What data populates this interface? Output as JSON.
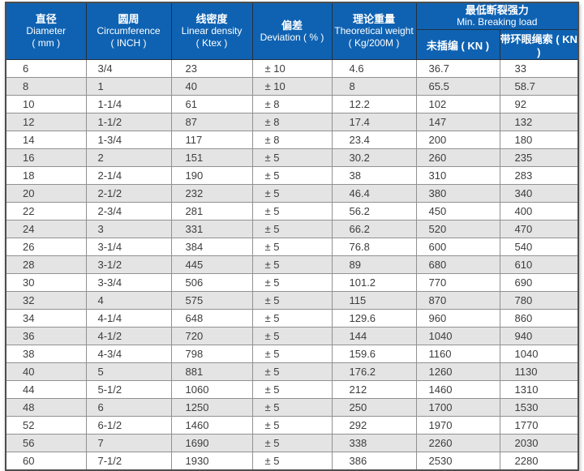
{
  "colors": {
    "header_bg": "#0f62b2",
    "header_text": "#ffffff",
    "row_alt_bg": "#e4e4e4",
    "row_bg": "#ffffff",
    "body_text": "#3d3d3d",
    "grid_border": "#919191",
    "outer_border": "#4e4e4e",
    "header_border": "#20303f"
  },
  "table": {
    "header": {
      "diameter": {
        "zh": "直径",
        "en": "Diameter",
        "unit": "( mm )"
      },
      "circumference": {
        "zh": "圆周",
        "en": "Circumference",
        "unit": "( INCH )"
      },
      "linear_density": {
        "zh": "线密度",
        "en": "Linear density",
        "unit": "( Ktex )"
      },
      "deviation": {
        "zh": "偏差",
        "en": "Deviation ( % )"
      },
      "theoretical_weight": {
        "zh": "理论重量",
        "en": "Theoretical weight",
        "unit": "( Kg/200M )"
      },
      "breaking_load": {
        "zh": "最低断裂强力",
        "en": "Min. Breaking load",
        "unspliced": "未插编 ( KN )",
        "eye_spliced": "带环眼绳索 ( KN )"
      }
    },
    "rows": [
      [
        "6",
        "3/4",
        "23",
        "± 10",
        "4.6",
        "36.7",
        "33"
      ],
      [
        "8",
        "1",
        "40",
        "± 10",
        "8",
        "65.5",
        "58.7"
      ],
      [
        "10",
        "1-1/4",
        "61",
        "± 8",
        "12.2",
        "102",
        "92"
      ],
      [
        "12",
        "1-1/2",
        "87",
        "± 8",
        "17.4",
        "147",
        "132"
      ],
      [
        "14",
        "1-3/4",
        "117",
        "± 8",
        "23.4",
        "200",
        "180"
      ],
      [
        "16",
        "2",
        "151",
        "± 5",
        "30.2",
        "260",
        "235"
      ],
      [
        "18",
        "2-1/4",
        "190",
        "± 5",
        "38",
        "310",
        "283"
      ],
      [
        "20",
        "2-1/2",
        "232",
        "± 5",
        "46.4",
        "380",
        "340"
      ],
      [
        "22",
        "2-3/4",
        "281",
        "± 5",
        "56.2",
        "450",
        "400"
      ],
      [
        "24",
        "3",
        "331",
        "± 5",
        "66.2",
        "520",
        "470"
      ],
      [
        "26",
        "3-1/4",
        "384",
        "± 5",
        "76.8",
        "600",
        "540"
      ],
      [
        "28",
        "3-1/2",
        "445",
        "± 5",
        "89",
        "680",
        "610"
      ],
      [
        "30",
        "3-3/4",
        "506",
        "± 5",
        "101.2",
        "770",
        "690"
      ],
      [
        "32",
        "4",
        "575",
        "± 5",
        "115",
        "870",
        "780"
      ],
      [
        "34",
        "4-1/4",
        "648",
        "± 5",
        "129.6",
        "960",
        "860"
      ],
      [
        "36",
        "4-1/2",
        "720",
        "± 5",
        "144",
        "1040",
        "940"
      ],
      [
        "38",
        "4-3/4",
        "798",
        "± 5",
        "159.6",
        "1160",
        "1040"
      ],
      [
        "40",
        "5",
        "881",
        "± 5",
        "176.2",
        "1260",
        "1130"
      ],
      [
        "44",
        "5-1/2",
        "1060",
        "± 5",
        "212",
        "1460",
        "1310"
      ],
      [
        "48",
        "6",
        "1250",
        "± 5",
        "250",
        "1700",
        "1530"
      ],
      [
        "52",
        "6-1/2",
        "1460",
        "± 5",
        "292",
        "1970",
        "1770"
      ],
      [
        "56",
        "7",
        "1690",
        "± 5",
        "338",
        "2260",
        "2030"
      ],
      [
        "60",
        "7-1/2",
        "1930",
        "± 5",
        "386",
        "2530",
        "2280"
      ]
    ]
  }
}
